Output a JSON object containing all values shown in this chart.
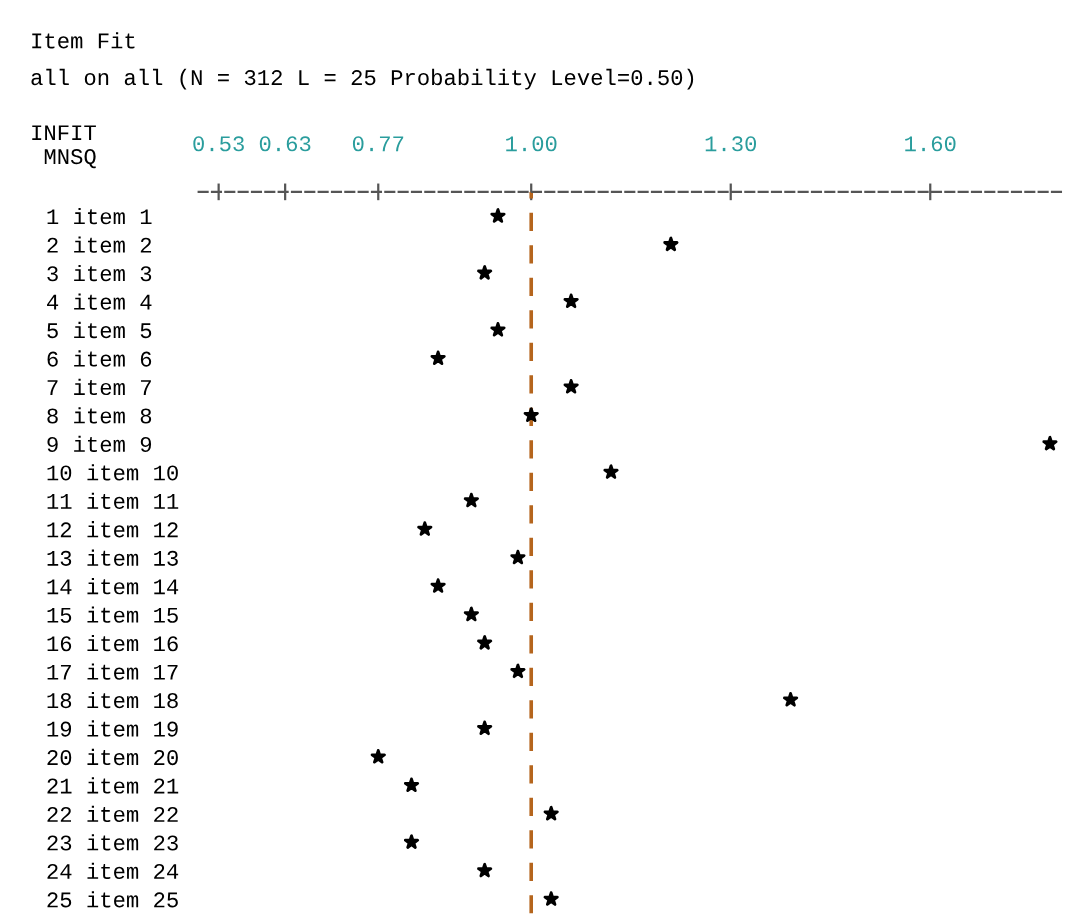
{
  "chart_data": {
    "type": "scatter",
    "title": "Item Fit",
    "subtitle": "all on all (N = 312 L = 25 Probability Level=0.50)",
    "xlabel": "INFIT\n MNSQ",
    "categories": [
      "1 item 1",
      "2 item 2",
      "3 item 3",
      "4 item 4",
      "5 item 5",
      "6 item 6",
      "7 item 7",
      "8 item 8",
      "9 item 9",
      "10 item 10",
      "11 item 11",
      "12 item 12",
      "13 item 13",
      "14 item 14",
      "15 item 15",
      "16 item 16",
      "17 item 17",
      "18 item 18",
      "19 item 19",
      "20 item 20",
      "21 item 21",
      "22 item 22",
      "23 item 23",
      "24 item 24",
      "25 item 25"
    ],
    "orientation": "horizontal",
    "series": [
      {
        "color": "#000000",
        "values": [
          0.95,
          1.21,
          0.93,
          1.06,
          0.95,
          0.86,
          1.06,
          1.0,
          1.78,
          1.12,
          0.91,
          0.84,
          0.98,
          0.86,
          0.91,
          0.93,
          0.98,
          1.39,
          0.93,
          0.77,
          0.82,
          1.03,
          0.82,
          0.93,
          1.03
        ]
      }
    ],
    "xlim": [
      0.5,
      1.8
    ],
    "xticks": [
      {
        "value": 0.53,
        "label": "0.53"
      },
      {
        "value": 0.63,
        "label": "0.63"
      },
      {
        "value": 0.77,
        "label": "0.77"
      },
      {
        "value": 1.0,
        "label": "1.00"
      },
      {
        "value": 1.3,
        "label": "1.30"
      },
      {
        "value": 1.6,
        "label": "1.60"
      }
    ],
    "ref_lines": [
      {
        "axis": "x",
        "value": 1.0,
        "color": "#b5651d",
        "line_style": "dashed"
      }
    ],
    "marker": "star",
    "grid": false,
    "legend": false
  }
}
